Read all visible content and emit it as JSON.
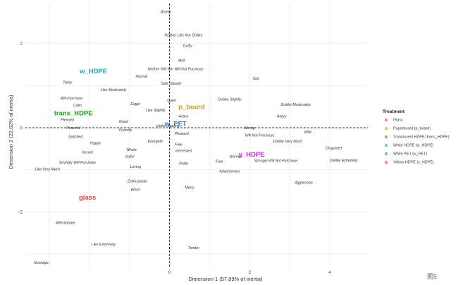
{
  "chart_data": {
    "type": "scatter",
    "xlabel": "Dimension 1 (57.89% of inertia)",
    "ylabel": "Dimension 2 (22.02% of inertia)",
    "xlim": [
      -3.6,
      4.95
    ],
    "ylim": [
      -3.3,
      2.95
    ],
    "x_ticks": [
      0,
      2,
      4
    ],
    "y_ticks": [
      -2,
      0,
      2
    ],
    "grid": true,
    "reference_lines": "dashed x=0 and y=0",
    "legend": {
      "title": "Treatment",
      "position": "right",
      "entries": [
        {
          "key": "a",
          "label": "Glass",
          "color": "#e8413c"
        },
        {
          "key": "a",
          "label": "Paperboard (p_board)",
          "color": "#b9a21e"
        },
        {
          "key": "a",
          "label": "Translucent HDPE (trans_HDPE)",
          "color": "#1fa01f"
        },
        {
          "key": "a",
          "label": "White HDPE (w_HDPE)",
          "color": "#20a5b0"
        },
        {
          "key": "a",
          "label": "White PET (w_PET)",
          "color": "#2f7fe0"
        },
        {
          "key": "a",
          "label": "Yellow HDPE (y_HDPE)",
          "color": "#cc2ecc"
        }
      ]
    },
    "treatments": [
      {
        "label": "glass",
        "x": -2.05,
        "y": -1.65,
        "color": "#e8413c"
      },
      {
        "label": "p_board",
        "x": 0.55,
        "y": 0.5,
        "color": "#b9a21e"
      },
      {
        "label": "trans_HDPE",
        "x": -2.4,
        "y": 0.35,
        "color": "#1fa01f"
      },
      {
        "label": "w_HDPE",
        "x": -1.9,
        "y": 1.35,
        "color": "#20a5b0"
      },
      {
        "label": "w_PET",
        "x": 0.15,
        "y": 0.1,
        "color": "#2f7fe0"
      },
      {
        "label": "y_HDPE",
        "x": 2.05,
        "y": -0.63,
        "color": "#cc2ecc"
      }
    ],
    "attributes": [
      {
        "label": "Bored",
        "x": -0.1,
        "y": 2.75
      },
      {
        "label": "Neither Like Nor Dislike",
        "x": 0.35,
        "y": 2.2
      },
      {
        "label": "Guilty",
        "x": 0.45,
        "y": 1.95
      },
      {
        "label": "Mild",
        "x": 0.3,
        "y": 1.6
      },
      {
        "label": "Neither Will Nor Will Not Purchase",
        "x": 0.15,
        "y": 1.4
      },
      {
        "label": "Normal",
        "x": -0.7,
        "y": 1.22
      },
      {
        "label": "Tame",
        "x": -2.55,
        "y": 1.08
      },
      {
        "label": "Safe",
        "x": -0.12,
        "y": 1.05
      },
      {
        "label": "Steady",
        "x": 0.15,
        "y": 1.05
      },
      {
        "label": "Like Moderately",
        "x": -1.4,
        "y": 0.9
      },
      {
        "label": "Sad",
        "x": 2.15,
        "y": 1.17
      },
      {
        "label": "Will Purchase",
        "x": -2.45,
        "y": 0.7
      },
      {
        "label": "Quiet",
        "x": 0.05,
        "y": 0.65
      },
      {
        "label": "Dislike Slightly",
        "x": 1.5,
        "y": 0.68
      },
      {
        "label": "Eager",
        "x": -0.85,
        "y": 0.57
      },
      {
        "label": "Dislike Moderately",
        "x": 3.15,
        "y": 0.55
      },
      {
        "label": "Calm",
        "x": -2.3,
        "y": 0.53
      },
      {
        "label": "Like Slightly",
        "x": -0.35,
        "y": 0.42
      },
      {
        "label": "Active",
        "x": 0.35,
        "y": 0.27
      },
      {
        "label": "Angry",
        "x": 2.8,
        "y": 0.27
      },
      {
        "label": "Pleased",
        "x": -2.55,
        "y": 0.19
      },
      {
        "label": "Good",
        "x": -1.15,
        "y": 0.15
      },
      {
        "label": "Understanding",
        "x": -0.05,
        "y": 0.05
      },
      {
        "label": "Wild",
        "x": 3.45,
        "y": -0.1
      },
      {
        "label": "Peaceful",
        "x": -2.4,
        "y": 0.0
      },
      {
        "label": "Friendly",
        "x": -1.1,
        "y": -0.05
      },
      {
        "label": "Boring",
        "x": 2.0,
        "y": 0.0
      },
      {
        "label": "Pleasant",
        "x": 0.3,
        "y": -0.14
      },
      {
        "label": "Will Not Purchase",
        "x": 2.25,
        "y": -0.18
      },
      {
        "label": "Satisfied",
        "x": -2.35,
        "y": -0.21
      },
      {
        "label": "Dislike Very Much",
        "x": 2.95,
        "y": -0.32
      },
      {
        "label": "Happy",
        "x": -1.85,
        "y": -0.36
      },
      {
        "label": "Energetic",
        "x": -0.35,
        "y": -0.32
      },
      {
        "label": "Free",
        "x": 0.22,
        "y": -0.4
      },
      {
        "label": "Disgusted",
        "x": 4.1,
        "y": -0.48
      },
      {
        "label": "Whole",
        "x": -0.95,
        "y": -0.52
      },
      {
        "label": "Interested",
        "x": 0.35,
        "y": -0.55
      },
      {
        "label": "Secure",
        "x": -2.05,
        "y": -0.58
      },
      {
        "label": "Joyful",
        "x": -1.0,
        "y": -0.68
      },
      {
        "label": "Worried",
        "x": 1.65,
        "y": -0.68
      },
      {
        "label": "Strongly Will Purchase",
        "x": -2.3,
        "y": -0.82
      },
      {
        "label": "Fear",
        "x": 1.25,
        "y": -0.8
      },
      {
        "label": "Strongly Will Not Purchase",
        "x": 2.65,
        "y": -0.78
      },
      {
        "label": "Dislike Extremely",
        "x": 4.35,
        "y": -0.77
      },
      {
        "label": "Polite",
        "x": 0.35,
        "y": -0.85
      },
      {
        "label": "Loving",
        "x": -0.85,
        "y": -0.92
      },
      {
        "label": "Like Very Much",
        "x": -3.05,
        "y": -0.98
      },
      {
        "label": "Adventurous",
        "x": 1.5,
        "y": -1.03
      },
      {
        "label": "Enthusiastic",
        "x": -0.8,
        "y": -1.27
      },
      {
        "label": "Aggressive",
        "x": 3.35,
        "y": -1.3
      },
      {
        "label": "Merry",
        "x": 0.5,
        "y": -1.42
      },
      {
        "label": "Worm",
        "x": -0.85,
        "y": -1.47
      },
      {
        "label": "Affectionate",
        "x": -2.6,
        "y": -2.26
      },
      {
        "label": "Like Extremely",
        "x": -1.65,
        "y": -2.77
      },
      {
        "label": "Tender",
        "x": 0.6,
        "y": -2.85
      },
      {
        "label": "Nostalgic",
        "x": -3.2,
        "y": -3.2
      }
    ],
    "corner_mark": "图5"
  }
}
